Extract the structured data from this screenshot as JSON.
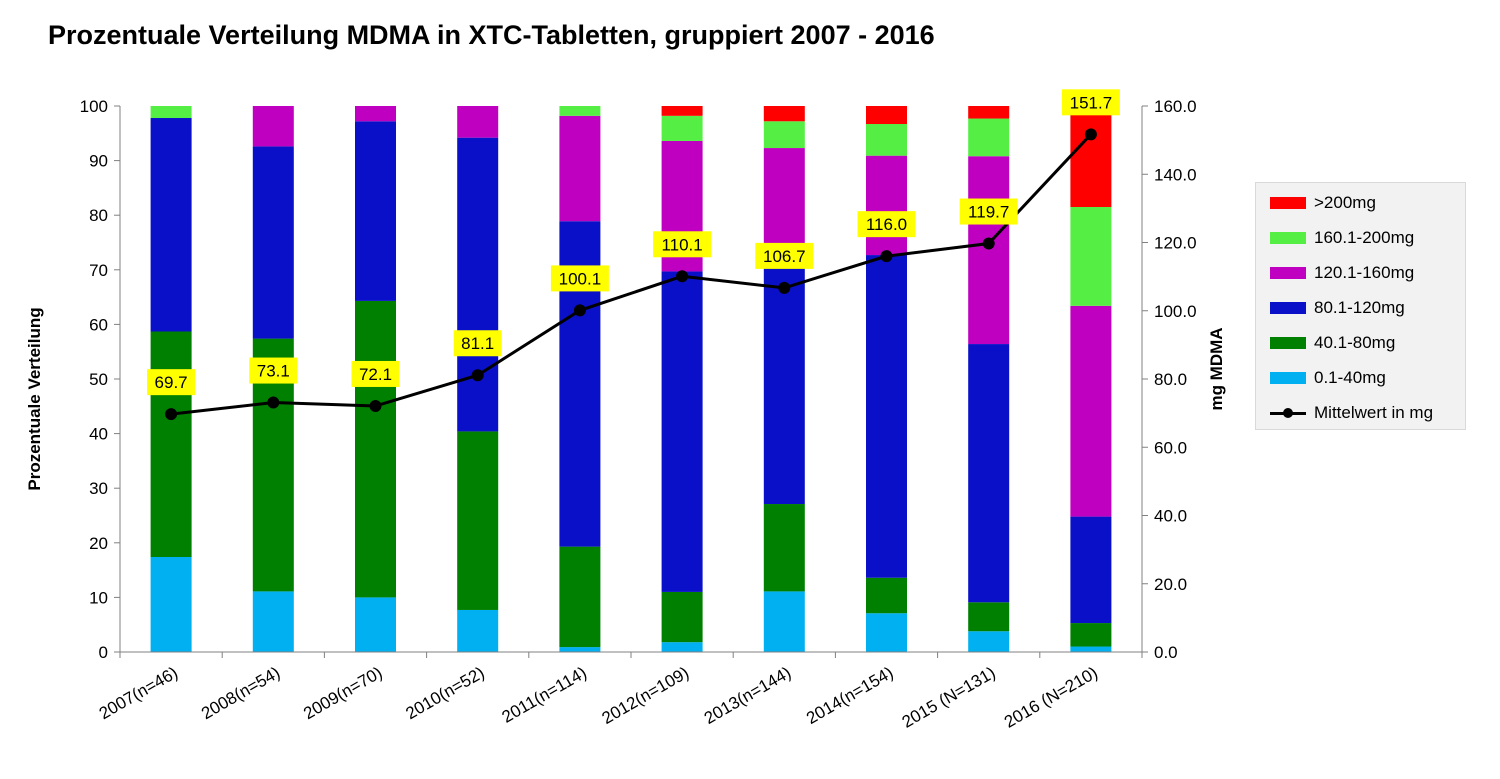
{
  "title": "Prozentuale Verteilung MDMA in XTC-Tabletten, gruppiert 2007 - 2016",
  "chart_data": {
    "type": "bar",
    "stacked": true,
    "title": "Prozentuale Verteilung MDMA in XTC-Tabletten, gruppiert 2007 - 2016",
    "categories": [
      "2007(n=46)",
      "2008(n=54)",
      "2009(n=70)",
      "2010(n=52)",
      "2011(n=114)",
      "2012(n=109)",
      "2013(n=144)",
      "2014(n=154)",
      "2015 (N=131)",
      "2016 (N=210)"
    ],
    "ylabel": "Prozentuale Verteilung",
    "y2label": "mg MDMA",
    "ylim": [
      0,
      100
    ],
    "y2lim": [
      0,
      160
    ],
    "yticks": [
      "0",
      "10",
      "20",
      "30",
      "40",
      "50",
      "60",
      "70",
      "80",
      "90",
      "100"
    ],
    "y2ticks": [
      "0.0",
      "20.0",
      "40.0",
      "60.0",
      "80.0",
      "100.0",
      "120.0",
      "140.0",
      "160.0"
    ],
    "series": [
      {
        "name": "0.1-40mg",
        "color": "#00b0f0",
        "values": [
          17.4,
          11.1,
          10.0,
          7.7,
          0.9,
          1.8,
          11.1,
          7.1,
          3.8,
          1.0
        ]
      },
      {
        "name": "40.1-80mg",
        "color": "#008000",
        "values": [
          41.3,
          46.3,
          54.3,
          32.7,
          18.4,
          9.2,
          16.0,
          6.5,
          5.3,
          4.3
        ]
      },
      {
        "name": "80.1-120mg",
        "color": "#0a10c8",
        "values": [
          39.1,
          35.2,
          32.9,
          53.8,
          59.6,
          58.7,
          45.1,
          59.1,
          47.3,
          19.5
        ]
      },
      {
        "name": "120.1-160mg",
        "color": "#c000c0",
        "values": [
          0.0,
          7.4,
          2.8,
          5.8,
          19.3,
          23.9,
          20.1,
          18.2,
          34.4,
          38.6
        ]
      },
      {
        "name": "160.1-200mg",
        "color": "#55ee44",
        "values": [
          2.2,
          0.0,
          0.0,
          0.0,
          1.8,
          4.6,
          4.9,
          5.8,
          6.9,
          18.1
        ]
      },
      {
        "name": ">200mg",
        "color": "#ff0000",
        "values": [
          0.0,
          0.0,
          0.0,
          0.0,
          0.0,
          1.8,
          2.8,
          3.3,
          2.3,
          18.5
        ]
      }
    ],
    "line": {
      "name": "Mittelwert in mg",
      "color": "#000000",
      "values": [
        69.7,
        73.1,
        72.1,
        81.1,
        100.1,
        110.1,
        106.7,
        116.0,
        119.7,
        151.7
      ],
      "labels": [
        "69.7",
        "73.1",
        "72.1",
        "81.1",
        "100.1",
        "110.1",
        "106.7",
        "116.0",
        "119.7",
        "151.7"
      ],
      "label_bg": "#ffff00"
    },
    "grid": false,
    "legend_position": "right"
  },
  "legend": {
    "items": [
      {
        "label": ">200mg",
        "color": "#ff0000"
      },
      {
        "label": "160.1-200mg",
        "color": "#55ee44"
      },
      {
        "label": "120.1-160mg",
        "color": "#c000c0"
      },
      {
        "label": "80.1-120mg",
        "color": "#0a10c8"
      },
      {
        "label": "40.1-80mg",
        "color": "#008000"
      },
      {
        "label": "0.1-40mg",
        "color": "#00b0f0"
      }
    ],
    "line_label": "Mittelwert in mg"
  }
}
